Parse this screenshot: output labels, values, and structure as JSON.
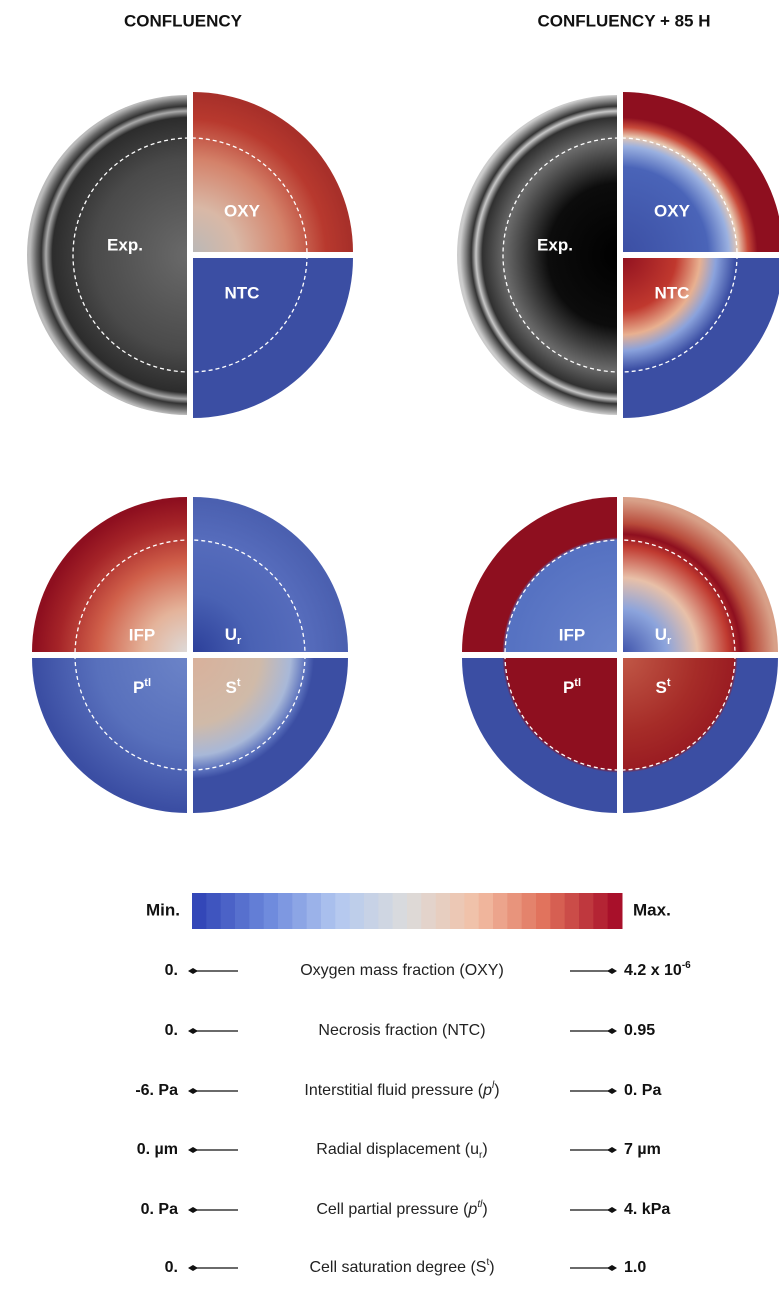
{
  "columns": [
    {
      "title": "CONFLUENCY"
    },
    {
      "title": "CONFLUENCY + 85 H"
    }
  ],
  "panel_labels": {
    "exp": "Exp.",
    "oxy": "OXY",
    "ntc": "NTC",
    "ifp": "IFP",
    "ur": {
      "base": "U",
      "sub": "r"
    },
    "ptl": {
      "base": "P",
      "sup": "tl"
    },
    "st": {
      "base": "S",
      "sup": "t"
    }
  },
  "colorbar": {
    "min": "Min.",
    "max": "Max."
  },
  "legend": [
    {
      "min": "0.",
      "name": [
        "Oxygen mass fraction (OXY)"
      ],
      "max": [
        "4.2 x 10",
        "-6"
      ]
    },
    {
      "min": "0.",
      "name": [
        "Necrosis fraction (NTC)"
      ],
      "max": [
        "0.95"
      ]
    },
    {
      "min": "-6. Pa",
      "name": [
        "Interstitial  fluid pressure (",
        "p",
        "l",
        ")"
      ],
      "max": [
        "0. Pa"
      ]
    },
    {
      "min": "0. µm",
      "name": [
        "Radial displacement (u",
        "r",
        ")"
      ],
      "max": [
        "7 µm"
      ]
    },
    {
      "min": "0. Pa",
      "name": [
        "Cell partial pressure (",
        "p",
        "tl",
        ")"
      ],
      "max": [
        "4. kPa"
      ]
    },
    {
      "min": "0.",
      "name": [
        "Cell saturation degree (S",
        "t",
        ")"
      ],
      "max": [
        "1.0"
      ]
    }
  ]
}
